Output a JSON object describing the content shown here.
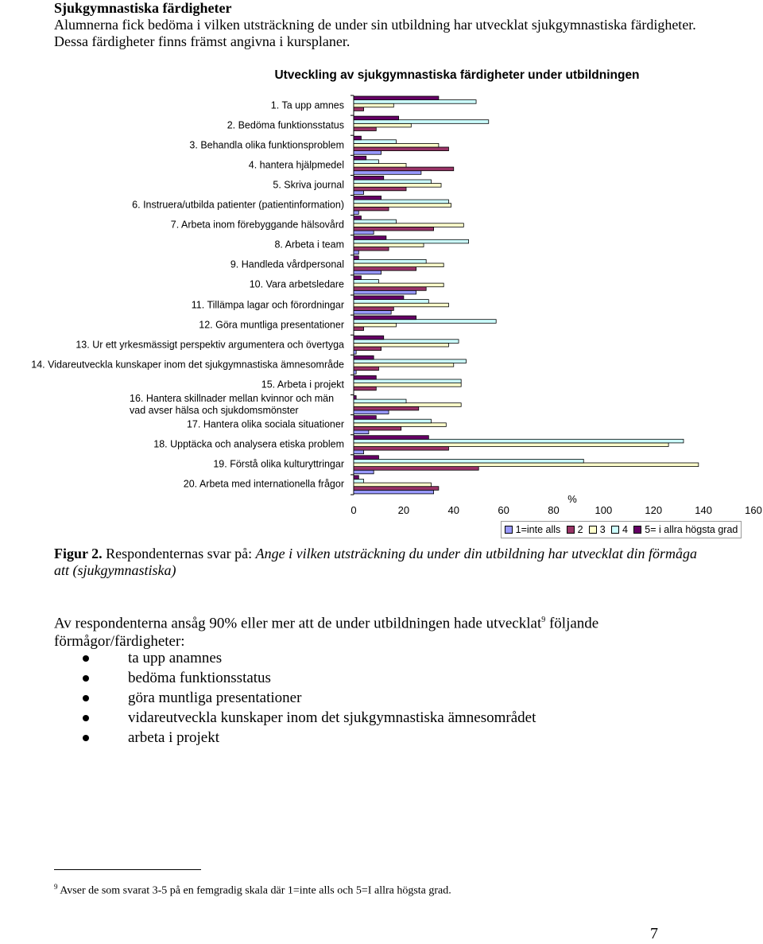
{
  "heading": "Sjukgymnastiska färdigheter",
  "intro": "Alumnerna fick bedöma i vilken utsträckning de under sin utbildning har utvecklat sjukgymnastiska färdigheter. Dessa färdigheter finns främst angivna i kursplaner.",
  "chart_data": {
    "type": "bar",
    "orientation": "horizontal",
    "title": "Utveckling av sjukgymnastiska färdigheter under utbildningen",
    "x_label": "%",
    "categories": [
      "1. Ta upp amnes",
      "2. Bedöma funktionsstatus",
      "3. Behandla olika funktionsproblem",
      "4. hantera hjälpmedel",
      "5. Skriva journal",
      "6. Instruera/utbilda patienter (patientinformation)",
      "7. Arbeta inom förebyggande hälsovård",
      "8. Arbeta i team",
      "9. Handleda vårdpersonal",
      "10. Vara arbetsledare",
      "11. Tillämpa lagar och förordningar",
      "12. Göra muntliga presentationer",
      "13. Ur ett yrkesmässigt perspektiv argumentera och övertyga",
      "14. Vidareutveckla kunskaper inom det sjukgymnastiska ämnesområde",
      "15. Arbeta i projekt",
      "16. Hantera skillnader mellan kvinnor och män vad avser hälsa och sjukdomsmönster",
      "17. Hantera olika sociala situationer",
      "18. Upptäcka och analysera etiska problem",
      "19. Förstå olika kulturyttringar",
      "20. Arbeta med internationella frågor"
    ],
    "series": [
      {
        "name": "1=inte alls",
        "color": "#9999ff",
        "values": [
          0,
          0,
          11,
          27,
          4,
          2,
          8,
          2,
          11,
          25,
          15,
          0,
          1,
          1,
          0,
          14,
          6,
          4,
          8,
          32
        ]
      },
      {
        "name": "2",
        "color": "#993366",
        "values": [
          4,
          9,
          38,
          40,
          21,
          14,
          32,
          14,
          25,
          29,
          16,
          4,
          11,
          10,
          9,
          26,
          19,
          38,
          50,
          34
        ]
      },
      {
        "name": "3",
        "color": "#ffffcc",
        "values": [
          16,
          23,
          34,
          21,
          35,
          39,
          44,
          28,
          36,
          36,
          38,
          17,
          38,
          40,
          43,
          43,
          37,
          126,
          138,
          31
        ]
      },
      {
        "name": "4",
        "color": "#ccffff",
        "values": [
          49,
          54,
          17,
          10,
          31,
          38,
          17,
          46,
          29,
          10,
          30,
          57,
          42,
          45,
          43,
          21,
          31,
          132,
          92,
          4
        ]
      },
      {
        "name": "5= i allra högsta grad",
        "color": "#660066",
        "values": [
          34,
          18,
          3,
          5,
          12,
          11,
          3,
          13,
          2,
          3,
          20,
          25,
          12,
          8,
          9,
          1,
          9,
          30,
          10,
          2
        ]
      }
    ],
    "xlim": [
      0,
      160
    ],
    "xticks": [
      0,
      20,
      40,
      60,
      80,
      100,
      120,
      140,
      160
    ],
    "legend": "bottom-right"
  },
  "caption": {
    "label": "Figur 2.",
    "text": "Respondenternas svar på:",
    "question": "Ange i vilken utsträckning du under din utbildning har utvecklat din förmåga att (sjukgymnastiska)"
  },
  "body": {
    "text": "Av respondenterna ansåg 90% eller mer att de under utbildningen hade utvecklat",
    "footnote_ref": "9",
    "text_end": "följande förmågor/färdigheter:"
  },
  "bullets": [
    "ta upp anamnes",
    "bedöma funktionsstatus",
    "göra muntliga presentationer",
    "vidareutveckla kunskaper inom det sjukgymnastiska ämnesområdet",
    "arbeta i projekt"
  ],
  "footnote": {
    "number": "9",
    "text": "Avser de som svarat 3-5 på en femgradig skala där 1=inte alls och 5=I allra högsta grad."
  },
  "page_number": "7"
}
